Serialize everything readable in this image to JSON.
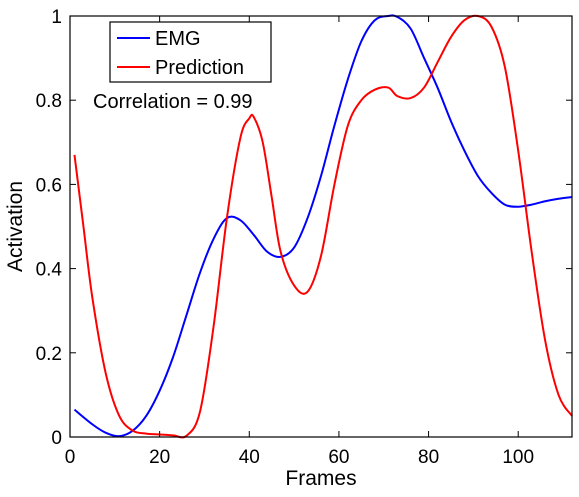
{
  "chart_data": {
    "type": "line",
    "title": "",
    "xlabel": "Frames",
    "ylabel": "Activation",
    "xlim": [
      0,
      112
    ],
    "ylim": [
      0,
      1
    ],
    "xticks": [
      0,
      20,
      40,
      60,
      80,
      100
    ],
    "yticks": [
      0,
      0.2,
      0.4,
      0.6,
      0.8,
      1
    ],
    "xtick_labels": [
      "0",
      "20",
      "40",
      "60",
      "80",
      "100"
    ],
    "ytick_labels": [
      "0",
      "0.2",
      "0.4",
      "0.6",
      "0.8",
      "1"
    ],
    "grid": false,
    "legend_position": "top-left",
    "annotation": "Correlation = 0.99",
    "series": [
      {
        "name": "EMG",
        "color": "#0000ff",
        "x": [
          1,
          5,
          8,
          11,
          14,
          17,
          20,
          23,
          26,
          29,
          32,
          35,
          38,
          41,
          44,
          47,
          50,
          53,
          56,
          59,
          62,
          65,
          68,
          71,
          73,
          76,
          79,
          82,
          85,
          88,
          91,
          94,
          97,
          100,
          103,
          106,
          109,
          112
        ],
        "y": [
          0.065,
          0.03,
          0.01,
          0.002,
          0.015,
          0.05,
          0.11,
          0.19,
          0.29,
          0.39,
          0.47,
          0.52,
          0.515,
          0.48,
          0.44,
          0.428,
          0.45,
          0.52,
          0.62,
          0.74,
          0.85,
          0.94,
          0.99,
          1.0,
          0.998,
          0.97,
          0.9,
          0.83,
          0.75,
          0.68,
          0.62,
          0.58,
          0.552,
          0.547,
          0.552,
          0.56,
          0.566,
          0.57
        ]
      },
      {
        "name": "Prediction",
        "color": "#ff0000",
        "x": [
          1,
          3,
          5,
          8,
          11,
          14,
          17,
          20,
          23,
          26,
          29,
          32,
          35,
          38,
          40,
          41,
          43,
          45,
          47,
          50,
          53,
          56,
          59,
          62,
          65,
          68,
          71,
          73,
          76,
          79,
          82,
          85,
          88,
          91,
          94,
          97,
          100,
          103,
          106,
          109,
          112
        ],
        "y": [
          0.67,
          0.5,
          0.33,
          0.15,
          0.05,
          0.015,
          0.008,
          0.006,
          0.004,
          0.003,
          0.06,
          0.26,
          0.52,
          0.71,
          0.757,
          0.76,
          0.7,
          0.57,
          0.44,
          0.36,
          0.345,
          0.43,
          0.6,
          0.74,
          0.8,
          0.825,
          0.83,
          0.81,
          0.805,
          0.83,
          0.89,
          0.95,
          0.99,
          1.0,
          0.975,
          0.88,
          0.68,
          0.44,
          0.23,
          0.1,
          0.05
        ]
      }
    ]
  }
}
